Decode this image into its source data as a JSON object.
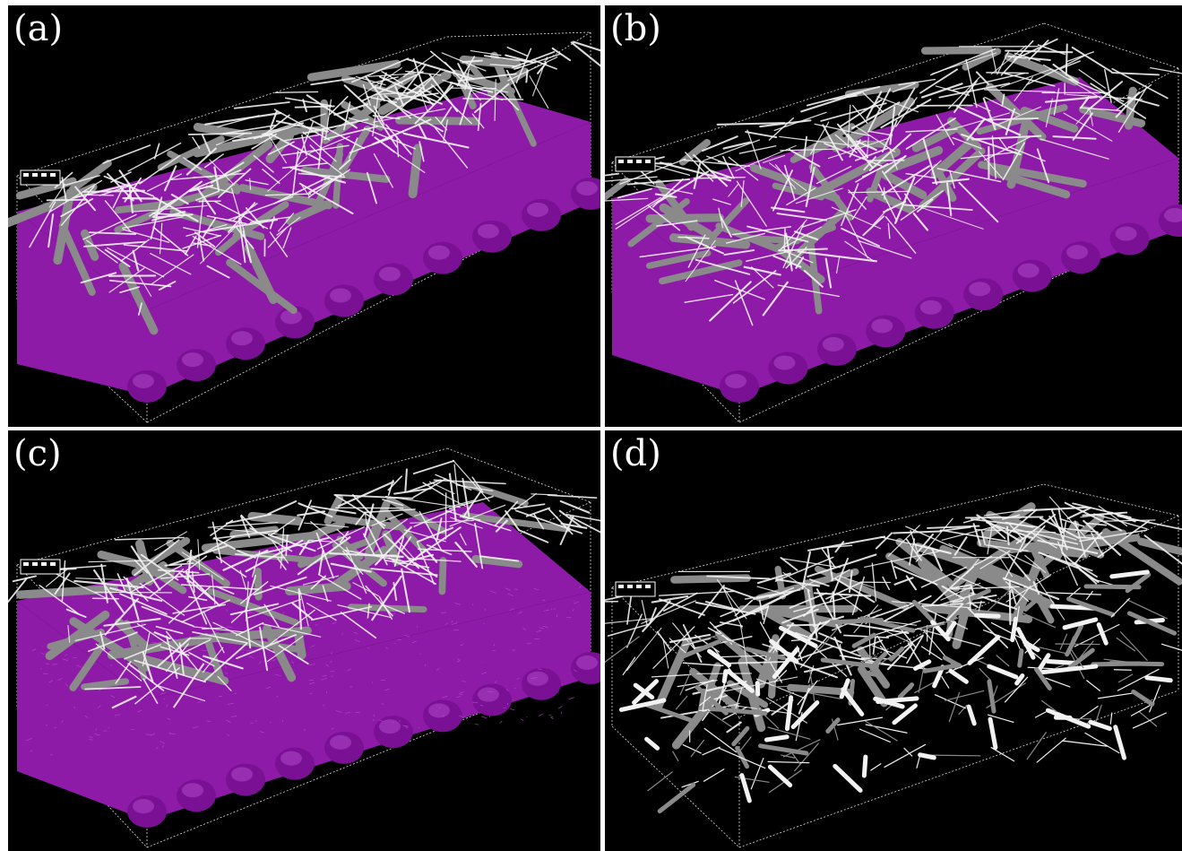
{
  "figure": {
    "panels": [
      {
        "label": "(a)",
        "has_purple_substrate": true,
        "purple_interlayer": false,
        "fiber_color": "#b0b0b0"
      },
      {
        "label": "(b)",
        "has_purple_substrate": true,
        "purple_interlayer": false,
        "fiber_color": "#b0b0b0"
      },
      {
        "label": "(c)",
        "has_purple_substrate": true,
        "purple_interlayer": true,
        "fiber_color": "#b0b0b0"
      },
      {
        "label": "(d)",
        "has_purple_substrate": false,
        "purple_interlayer": false,
        "fiber_color": "#b0b0b0"
      }
    ],
    "colors": {
      "background": "#000000",
      "substrate": "#8e1aa8",
      "fiber_thick": "#8a8a8a",
      "fiber_thin": "#f2f2f2",
      "box_edges": "#dddddd"
    }
  }
}
